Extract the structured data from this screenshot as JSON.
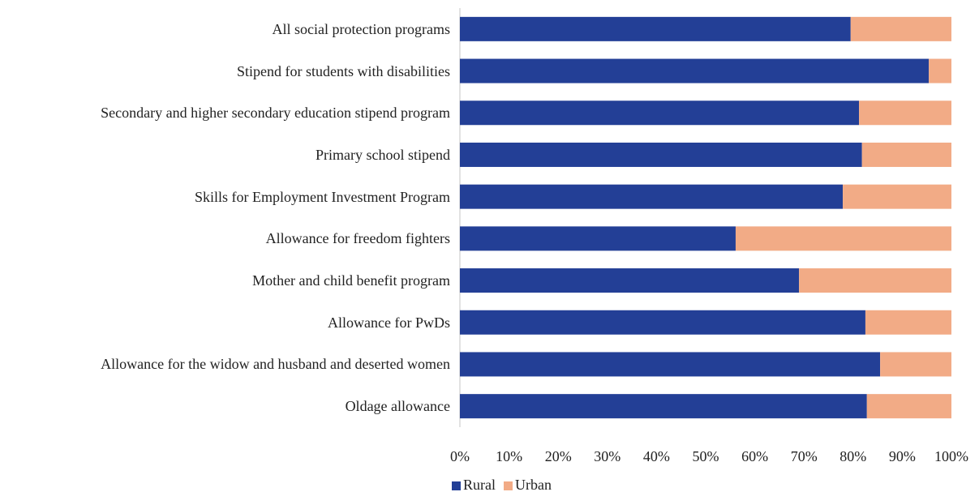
{
  "chart_data": {
    "type": "stacked_barh",
    "categories": [
      "All social protection programs",
      "Stipend for students with disabilities",
      "Secondary and higher secondary education stipend program",
      "Primary school stipend",
      "Skills for Employment Investment Program",
      "Allowance for freedom fighters",
      "Mother and child benefit program",
      "Allowance for PwDs",
      "Allowance for the widow and husband and deserted women",
      "Oldage allowance"
    ],
    "series": [
      {
        "name": "Rural",
        "color": "#233f96",
        "values": [
          79.5,
          95.4,
          81.2,
          81.8,
          77.9,
          56.1,
          69.0,
          82.5,
          85.5,
          82.8
        ]
      },
      {
        "name": "Urban",
        "color": "#f2ab86",
        "values": [
          20.5,
          4.6,
          18.8,
          18.2,
          22.1,
          43.9,
          31.0,
          17.5,
          14.5,
          17.2
        ]
      }
    ],
    "xlim": [
      0,
      100
    ],
    "xticks": [
      {
        "value": 0,
        "label": "0%"
      },
      {
        "value": 10,
        "label": "10%"
      },
      {
        "value": 20,
        "label": "20%"
      },
      {
        "value": 30,
        "label": "30%"
      },
      {
        "value": 40,
        "label": "40%"
      },
      {
        "value": 50,
        "label": "50%"
      },
      {
        "value": 60,
        "label": "60%"
      },
      {
        "value": 70,
        "label": "70%"
      },
      {
        "value": 80,
        "label": "80%"
      },
      {
        "value": 90,
        "label": "90%"
      },
      {
        "value": 100,
        "label": "100%"
      }
    ],
    "grid": false,
    "legend": "bottom"
  }
}
